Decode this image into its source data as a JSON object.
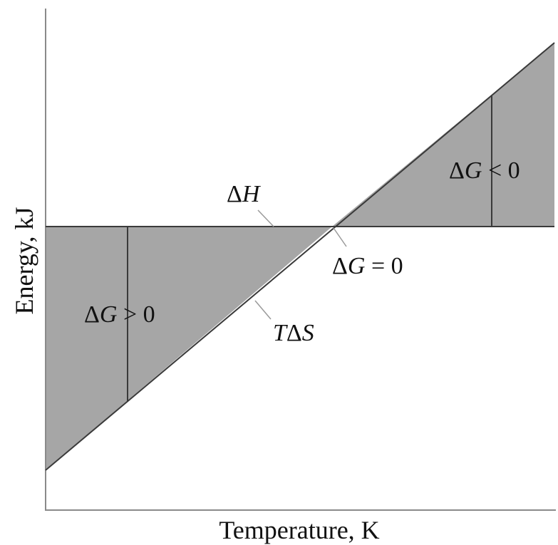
{
  "figure": {
    "y_axis_label": "Energy, kJ",
    "x_axis_label": "Temperature, K",
    "dh_label": {
      "delta": "Δ",
      "symbol": "H"
    },
    "tds_label": {
      "t": "T",
      "delta": "Δ",
      "symbol": "S"
    },
    "dg_zero_label": {
      "delta": "Δ",
      "symbol": "G",
      "rest": " = 0"
    },
    "dg_positive_label": {
      "delta": "Δ",
      "symbol": "G",
      "rest": " > 0"
    },
    "dg_negative_label": {
      "delta": "Δ",
      "symbol": "G",
      "rest": " < 0"
    }
  },
  "colors": {
    "shaded_region": "#a6a6a6",
    "lines": "#3a3a3a",
    "axes": "#8a8a8a",
    "text": "#111111"
  }
}
